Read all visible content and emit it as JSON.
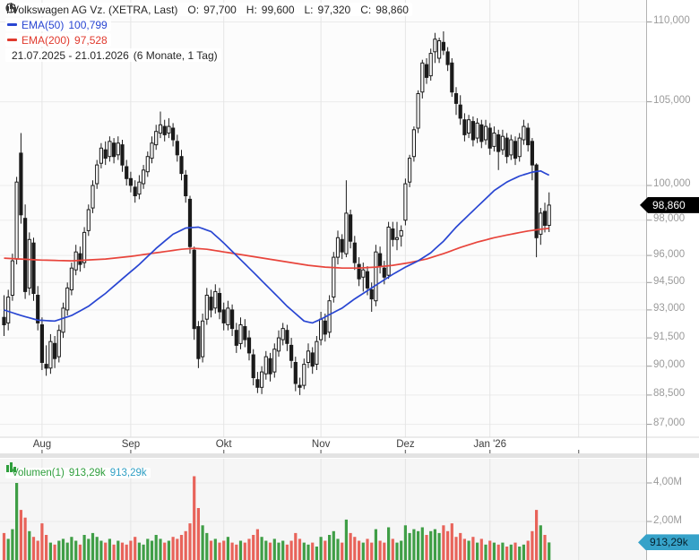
{
  "legend": {
    "instrument": "Volkswagen AG Vz. (XETRA, Last)",
    "o_label": "O:",
    "o": "97,700",
    "h_label": "H:",
    "h": "99,600",
    "l_label": "L:",
    "l": "97,320",
    "c_label": "C:",
    "c": "98,860",
    "ema50_name": "EMA(50)",
    "ema50_value": "100,799",
    "ema200_name": "EMA(200)",
    "ema200_value": "97,528",
    "range": "21.07.2025 - 21.01.2026",
    "range_note": "(6 Monate, 1 Tag)"
  },
  "volume_legend": {
    "name": "Volumen(1)",
    "value": "913,29k",
    "value2": "913,29k"
  },
  "price_axis": {
    "ticks": [
      {
        "label": "110,000",
        "value": 110.0
      },
      {
        "label": "105,000",
        "value": 105.0
      },
      {
        "label": "100,000",
        "value": 100.0
      },
      {
        "label": "98,000",
        "value": 98.0
      },
      {
        "label": "96,000",
        "value": 96.0
      },
      {
        "label": "94,500",
        "value": 94.5
      },
      {
        "label": "93,000",
        "value": 93.0
      },
      {
        "label": "91,500",
        "value": 91.5
      },
      {
        "label": "90,000",
        "value": 90.0
      },
      {
        "label": "88,500",
        "value": 88.5
      },
      {
        "label": "87,000",
        "value": 87.0
      }
    ],
    "badge": {
      "label": "98,860",
      "value": 98.86
    }
  },
  "volume_axis": {
    "ticks": [
      {
        "label": "4,00M",
        "value": 4.0
      },
      {
        "label": "2,00M",
        "value": 2.0
      }
    ],
    "badge": {
      "label": "913,29k",
      "value": 0.91
    }
  },
  "time_axis": {
    "months": [
      {
        "label": "Aug",
        "day": 9
      },
      {
        "label": "Sep",
        "day": 30
      },
      {
        "label": "Okt",
        "day": 52
      },
      {
        "label": "Nov",
        "day": 75
      },
      {
        "label": "Dez",
        "day": 95
      },
      {
        "label": "Jan '26",
        "day": 115
      },
      {
        "label": "",
        "day": 136
      }
    ]
  },
  "colors": {
    "up_candle": "#ffffff",
    "down_candle": "#1b1b1b",
    "candle_border": "#1b1b1b",
    "ema50": "#2946d2",
    "ema200": "#e8453c",
    "volume_up": "#3f9e46",
    "volume_down": "#e8635a",
    "grid": "#ebebeb",
    "month_grid": "#e5e5e5",
    "axis_line": "#b3b3b3",
    "price_badge_bg": "#000000",
    "price_badge_text": "#ffffff",
    "volume_badge_bg": "#36a2c9",
    "volume_badge_text": "#06222e"
  },
  "chart_data": {
    "type": "candlestick",
    "title": "Volkswagen AG Vz. (XETRA, Last)",
    "price_scale": "log",
    "y_axis_range": [
      87.0,
      110.0
    ],
    "x_range_dates": [
      "21.07.2025",
      "21.01.2026"
    ],
    "last_ohlc": {
      "open": 97.7,
      "high": 99.6,
      "low": 97.32,
      "close": 98.86
    },
    "ema50_last": 100.799,
    "ema200_last": 97.528,
    "last_volume": "913,29k",
    "ohlc": [
      [
        92.6,
        93.8,
        91.6,
        92.2
      ],
      [
        92.3,
        94.1,
        91.9,
        93.7
      ],
      [
        93.8,
        96.1,
        93.5,
        95.7
      ],
      [
        95.8,
        100.5,
        95.5,
        100.2
      ],
      [
        101.9,
        103.1,
        97.8,
        98.3
      ],
      [
        98.1,
        98.9,
        93.6,
        94.0
      ],
      [
        94.2,
        97.3,
        93.8,
        96.9
      ],
      [
        96.7,
        97.0,
        93.5,
        93.9
      ],
      [
        93.8,
        94.3,
        91.9,
        92.3
      ],
      [
        92.2,
        92.6,
        89.8,
        90.2
      ],
      [
        90.1,
        91.1,
        89.5,
        89.9
      ],
      [
        89.9,
        91.7,
        89.6,
        91.3
      ],
      [
        91.2,
        91.6,
        89.9,
        90.4
      ],
      [
        90.5,
        92.2,
        90.2,
        91.9
      ],
      [
        91.8,
        93.4,
        91.5,
        93.1
      ],
      [
        93.0,
        94.5,
        92.7,
        94.2
      ],
      [
        94.1,
        95.6,
        93.8,
        95.3
      ],
      [
        95.2,
        96.6,
        94.9,
        96.2
      ],
      [
        96.1,
        96.5,
        95.1,
        95.5
      ],
      [
        95.6,
        97.6,
        95.3,
        97.3
      ],
      [
        97.4,
        98.9,
        97.1,
        98.6
      ],
      [
        98.7,
        100.3,
        98.4,
        100.0
      ],
      [
        100.1,
        101.5,
        99.8,
        101.2
      ],
      [
        101.3,
        102.5,
        101.0,
        102.2
      ],
      [
        102.1,
        102.6,
        101.2,
        101.6
      ],
      [
        101.7,
        102.9,
        101.4,
        102.6
      ],
      [
        102.5,
        102.8,
        101.3,
        101.7
      ],
      [
        101.8,
        102.9,
        101.5,
        102.5
      ],
      [
        102.4,
        102.7,
        100.8,
        101.2
      ],
      [
        101.1,
        101.5,
        100.0,
        100.4
      ],
      [
        100.4,
        100.8,
        99.6,
        100.0
      ],
      [
        99.9,
        100.3,
        99.0,
        99.4
      ],
      [
        99.5,
        100.6,
        99.2,
        100.2
      ],
      [
        100.1,
        101.2,
        99.8,
        100.9
      ],
      [
        100.8,
        102.0,
        100.5,
        101.7
      ],
      [
        101.6,
        102.9,
        101.3,
        102.5
      ],
      [
        102.4,
        103.6,
        102.1,
        103.2
      ],
      [
        103.1,
        104.4,
        102.8,
        103.6
      ],
      [
        103.5,
        103.9,
        102.6,
        103.0
      ],
      [
        103.1,
        104.0,
        102.8,
        103.5
      ],
      [
        103.4,
        103.7,
        102.3,
        102.7
      ],
      [
        102.6,
        103.0,
        101.4,
        101.8
      ],
      [
        101.7,
        102.1,
        100.3,
        100.7
      ],
      [
        100.6,
        100.9,
        99.0,
        99.4
      ],
      [
        99.2,
        99.4,
        96.1,
        96.5
      ],
      [
        96.3,
        96.5,
        91.4,
        92.0
      ],
      [
        92.1,
        92.4,
        89.9,
        90.4
      ],
      [
        90.5,
        92.8,
        90.2,
        92.4
      ],
      [
        92.5,
        94.2,
        92.2,
        93.8
      ],
      [
        93.7,
        94.1,
        92.6,
        93.0
      ],
      [
        93.1,
        94.4,
        92.8,
        94.0
      ],
      [
        93.9,
        94.2,
        92.5,
        92.9
      ],
      [
        93.0,
        93.4,
        91.9,
        92.3
      ],
      [
        92.2,
        93.5,
        91.9,
        93.1
      ],
      [
        93.0,
        93.3,
        91.6,
        92.0
      ],
      [
        91.9,
        92.3,
        90.7,
        91.1
      ],
      [
        91.2,
        92.6,
        90.9,
        92.2
      ],
      [
        92.1,
        92.5,
        91.0,
        91.4
      ],
      [
        91.5,
        91.9,
        90.3,
        90.7
      ],
      [
        90.6,
        90.9,
        89.0,
        89.4
      ],
      [
        89.3,
        89.7,
        88.6,
        88.9
      ],
      [
        88.9,
        90.0,
        88.55,
        89.7
      ],
      [
        89.6,
        90.8,
        89.3,
        90.5
      ],
      [
        90.4,
        90.7,
        89.2,
        89.6
      ],
      [
        89.7,
        91.2,
        89.4,
        90.9
      ],
      [
        90.8,
        91.9,
        90.5,
        91.5
      ],
      [
        91.4,
        92.3,
        91.1,
        92.0
      ],
      [
        91.9,
        92.2,
        90.8,
        91.2
      ],
      [
        91.1,
        91.5,
        89.9,
        90.3
      ],
      [
        90.2,
        90.5,
        88.7,
        89.1
      ],
      [
        89.0,
        89.4,
        88.5,
        88.9
      ],
      [
        89.0,
        90.4,
        88.8,
        90.1
      ],
      [
        90.2,
        91.2,
        89.9,
        90.8
      ],
      [
        90.7,
        91.0,
        89.6,
        90.0
      ],
      [
        90.1,
        91.6,
        89.8,
        91.3
      ],
      [
        91.4,
        92.9,
        91.1,
        92.5
      ],
      [
        92.4,
        92.8,
        91.3,
        91.7
      ],
      [
        91.8,
        93.8,
        91.5,
        93.5
      ],
      [
        93.7,
        96.2,
        93.4,
        95.9
      ],
      [
        95.9,
        97.4,
        95.5,
        97.0
      ],
      [
        96.9,
        97.2,
        95.8,
        96.2
      ],
      [
        96.1,
        100.3,
        95.9,
        98.4
      ],
      [
        98.3,
        98.6,
        96.4,
        96.8
      ],
      [
        96.7,
        97.1,
        95.2,
        95.6
      ],
      [
        95.5,
        95.9,
        94.3,
        94.7
      ],
      [
        94.8,
        95.6,
        94.0,
        95.2
      ],
      [
        95.1,
        95.4,
        93.8,
        94.2
      ],
      [
        94.1,
        94.5,
        92.9,
        93.6
      ],
      [
        93.5,
        96.6,
        93.2,
        96.2
      ],
      [
        96.1,
        96.5,
        95.0,
        95.4
      ],
      [
        95.3,
        95.7,
        94.4,
        94.8
      ],
      [
        94.9,
        97.9,
        94.7,
        97.6
      ],
      [
        97.5,
        97.9,
        96.5,
        96.9
      ],
      [
        96.9,
        97.9,
        96.3,
        97.0
      ],
      [
        97.1,
        97.7,
        96.5,
        97.4
      ],
      [
        98.0,
        100.4,
        97.7,
        100.1
      ],
      [
        100.2,
        101.8,
        99.9,
        101.6
      ],
      [
        101.7,
        103.5,
        101.4,
        103.3
      ],
      [
        103.4,
        105.7,
        103.1,
        105.5
      ],
      [
        105.6,
        107.6,
        105.2,
        107.4
      ],
      [
        107.3,
        107.7,
        106.1,
        106.5
      ],
      [
        106.6,
        108.3,
        106.3,
        108.0
      ],
      [
        108.1,
        109.3,
        107.4,
        108.9
      ],
      [
        107.7,
        109.0,
        107.4,
        108.8
      ],
      [
        108.7,
        109.4,
        107.9,
        108.2
      ],
      [
        108.1,
        108.4,
        106.9,
        107.3
      ],
      [
        107.4,
        107.7,
        105.3,
        105.6
      ],
      [
        105.5,
        105.9,
        104.2,
        104.9
      ],
      [
        104.8,
        105.4,
        103.6,
        104.0
      ],
      [
        103.9,
        104.3,
        102.6,
        103.0
      ],
      [
        103.1,
        104.2,
        102.8,
        103.9
      ],
      [
        103.8,
        104.1,
        102.3,
        102.7
      ],
      [
        102.8,
        104.0,
        102.5,
        103.7
      ],
      [
        103.6,
        103.9,
        102.2,
        102.6
      ],
      [
        102.7,
        103.9,
        102.4,
        103.5
      ],
      [
        103.4,
        103.7,
        101.8,
        102.2
      ],
      [
        102.3,
        103.5,
        102.0,
        103.1
      ],
      [
        103.0,
        103.3,
        100.9,
        102.0
      ],
      [
        102.1,
        103.3,
        101.8,
        102.9
      ],
      [
        102.8,
        103.1,
        101.3,
        101.7
      ],
      [
        101.8,
        103.0,
        101.5,
        102.7
      ],
      [
        102.6,
        102.9,
        101.2,
        101.6
      ],
      [
        101.7,
        103.1,
        101.4,
        102.8
      ],
      [
        102.7,
        103.9,
        102.4,
        103.5
      ],
      [
        103.4,
        103.7,
        102.0,
        102.4
      ],
      [
        102.6,
        102.8,
        100.3,
        101.2
      ],
      [
        101.2,
        101.3,
        95.9,
        97.0
      ],
      [
        97.2,
        98.7,
        96.6,
        98.4
      ],
      [
        98.5,
        99.0,
        97.3,
        97.7
      ],
      [
        97.7,
        99.6,
        97.32,
        98.86
      ]
    ],
    "volume_millions": [
      1.4,
      1.1,
      1.6,
      4.0,
      2.6,
      2.2,
      1.5,
      1.2,
      1.0,
      1.9,
      1.3,
      0.9,
      0.8,
      1.0,
      1.1,
      0.9,
      1.2,
      1.0,
      0.8,
      1.3,
      1.1,
      1.4,
      1.2,
      1.0,
      0.9,
      1.1,
      0.8,
      1.0,
      0.9,
      0.8,
      1.0,
      1.2,
      0.9,
      0.8,
      1.1,
      1.0,
      1.3,
      1.1,
      0.9,
      1.0,
      1.2,
      1.1,
      1.3,
      1.5,
      1.9,
      4.35,
      2.7,
      1.8,
      1.4,
      1.0,
      1.1,
      0.9,
      1.0,
      1.2,
      0.9,
      0.8,
      1.0,
      0.9,
      1.1,
      1.3,
      1.6,
      1.2,
      1.0,
      0.9,
      1.1,
      0.9,
      1.0,
      0.8,
      1.0,
      1.4,
      1.1,
      0.9,
      0.8,
      0.9,
      0.7,
      1.2,
      1.0,
      1.3,
      1.5,
      1.1,
      0.9,
      2.1,
      1.4,
      1.2,
      1.0,
      0.9,
      1.1,
      0.9,
      1.6,
      1.0,
      0.9,
      1.7,
      1.1,
      0.9,
      1.0,
      1.8,
      1.4,
      1.6,
      1.5,
      1.7,
      1.3,
      1.5,
      1.6,
      1.4,
      1.8,
      1.5,
      1.9,
      1.2,
      1.4,
      1.1,
      1.0,
      1.2,
      0.9,
      1.1,
      0.8,
      1.0,
      0.9,
      0.8,
      0.9,
      0.7,
      0.8,
      0.9,
      0.7,
      0.8,
      1.0,
      1.5,
      2.6,
      1.8,
      1.3,
      0.91
    ],
    "ema50_points": [
      [
        0,
        93.0
      ],
      [
        4,
        92.7
      ],
      [
        8,
        92.45
      ],
      [
        12,
        92.4
      ],
      [
        16,
        92.7
      ],
      [
        20,
        93.2
      ],
      [
        24,
        93.9
      ],
      [
        28,
        94.7
      ],
      [
        32,
        95.5
      ],
      [
        36,
        96.4
      ],
      [
        40,
        97.2
      ],
      [
        43,
        97.55
      ],
      [
        46,
        97.6
      ],
      [
        49,
        97.35
      ],
      [
        52,
        96.7
      ],
      [
        55,
        96.0
      ],
      [
        58,
        95.3
      ],
      [
        61,
        94.6
      ],
      [
        64,
        93.9
      ],
      [
        67,
        93.2
      ],
      [
        69,
        92.8
      ],
      [
        71,
        92.4
      ],
      [
        73,
        92.3
      ],
      [
        75,
        92.5
      ],
      [
        77,
        92.75
      ],
      [
        80,
        93.1
      ],
      [
        83,
        93.6
      ],
      [
        86,
        94.05
      ],
      [
        89,
        94.5
      ],
      [
        92,
        94.95
      ],
      [
        95,
        95.35
      ],
      [
        98,
        95.7
      ],
      [
        101,
        96.15
      ],
      [
        104,
        96.8
      ],
      [
        107,
        97.6
      ],
      [
        110,
        98.3
      ],
      [
        113,
        99.0
      ],
      [
        116,
        99.7
      ],
      [
        119,
        100.2
      ],
      [
        122,
        100.55
      ],
      [
        125,
        100.78
      ],
      [
        127,
        100.85
      ],
      [
        129,
        100.6
      ]
    ],
    "ema200_points": [
      [
        0,
        95.85
      ],
      [
        8,
        95.75
      ],
      [
        16,
        95.7
      ],
      [
        24,
        95.8
      ],
      [
        30,
        95.95
      ],
      [
        36,
        96.15
      ],
      [
        42,
        96.35
      ],
      [
        45,
        96.4
      ],
      [
        48,
        96.35
      ],
      [
        52,
        96.2
      ],
      [
        56,
        96.05
      ],
      [
        60,
        95.9
      ],
      [
        64,
        95.75
      ],
      [
        68,
        95.6
      ],
      [
        72,
        95.45
      ],
      [
        76,
        95.35
      ],
      [
        80,
        95.3
      ],
      [
        84,
        95.3
      ],
      [
        88,
        95.35
      ],
      [
        92,
        95.45
      ],
      [
        96,
        95.6
      ],
      [
        100,
        95.8
      ],
      [
        104,
        96.1
      ],
      [
        108,
        96.45
      ],
      [
        112,
        96.75
      ],
      [
        116,
        97.0
      ],
      [
        120,
        97.2
      ],
      [
        124,
        97.38
      ],
      [
        127,
        97.48
      ],
      [
        129,
        97.53
      ]
    ]
  }
}
